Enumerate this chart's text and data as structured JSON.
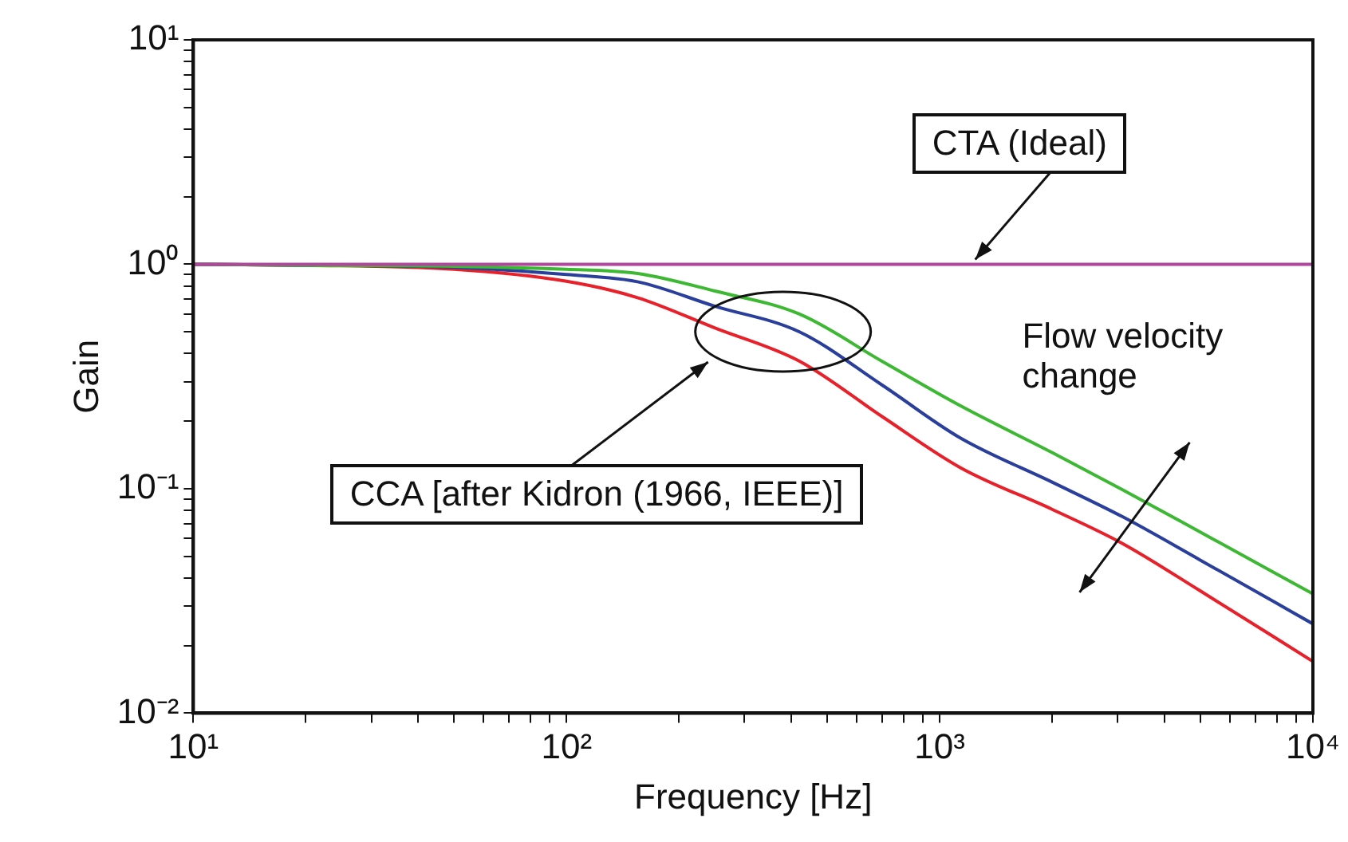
{
  "chart_data": {
    "type": "line",
    "xlabel": "Frequency [Hz]",
    "ylabel": "Gain",
    "log": "xy",
    "grid": false,
    "legend": false,
    "marker": "none",
    "line_style": "solid",
    "xlim": [
      10,
      10000
    ],
    "ylim": [
      0.01,
      10
    ],
    "xticks": [
      {
        "value": 10,
        "label": "10¹"
      },
      {
        "value": 20,
        "label": null
      },
      {
        "value": 30,
        "label": null
      },
      {
        "value": 40,
        "label": null
      },
      {
        "value": 50,
        "label": null
      },
      {
        "value": 60,
        "label": null
      },
      {
        "value": 70,
        "label": null
      },
      {
        "value": 80,
        "label": null
      },
      {
        "value": 90,
        "label": null
      },
      {
        "value": 100,
        "label": "10²"
      },
      {
        "value": 200,
        "label": null
      },
      {
        "value": 300,
        "label": null
      },
      {
        "value": 400,
        "label": null
      },
      {
        "value": 500,
        "label": null
      },
      {
        "value": 600,
        "label": null
      },
      {
        "value": 700,
        "label": null
      },
      {
        "value": 800,
        "label": null
      },
      {
        "value": 900,
        "label": null
      },
      {
        "value": 1000,
        "label": "10³"
      },
      {
        "value": 2000,
        "label": null
      },
      {
        "value": 3000,
        "label": null
      },
      {
        "value": 4000,
        "label": null
      },
      {
        "value": 5000,
        "label": null
      },
      {
        "value": 6000,
        "label": null
      },
      {
        "value": 7000,
        "label": null
      },
      {
        "value": 8000,
        "label": null
      },
      {
        "value": 9000,
        "label": null
      },
      {
        "value": 10000,
        "label": "10⁴"
      }
    ],
    "yticks": [
      {
        "value": 0.01,
        "label": "10⁻²"
      },
      {
        "value": 0.02,
        "label": null
      },
      {
        "value": 0.03,
        "label": null
      },
      {
        "value": 0.04,
        "label": null
      },
      {
        "value": 0.05,
        "label": null
      },
      {
        "value": 0.06,
        "label": null
      },
      {
        "value": 0.07,
        "label": null
      },
      {
        "value": 0.08,
        "label": null
      },
      {
        "value": 0.09,
        "label": null
      },
      {
        "value": 0.1,
        "label": "10⁻¹"
      },
      {
        "value": 0.2,
        "label": null
      },
      {
        "value": 0.3,
        "label": null
      },
      {
        "value": 0.4,
        "label": null
      },
      {
        "value": 0.5,
        "label": null
      },
      {
        "value": 0.6,
        "label": null
      },
      {
        "value": 0.7,
        "label": null
      },
      {
        "value": 0.8,
        "label": null
      },
      {
        "value": 0.9,
        "label": null
      },
      {
        "value": 1,
        "label": "10⁰"
      },
      {
        "value": 2,
        "label": null
      },
      {
        "value": 3,
        "label": null
      },
      {
        "value": 4,
        "label": null
      },
      {
        "value": 5,
        "label": null
      },
      {
        "value": 6,
        "label": null
      },
      {
        "value": 7,
        "label": null
      },
      {
        "value": 8,
        "label": null
      },
      {
        "value": 9,
        "label": null
      },
      {
        "value": 10,
        "label": "10¹"
      }
    ],
    "x": [
      10,
      20,
      50,
      100,
      155,
      250,
      421,
      700,
      1138,
      2000,
      3090,
      5000,
      10000
    ],
    "series": [
      {
        "color": "#b0479c",
        "x": [
          10,
          10000
        ],
        "values": [
          1,
          1
        ]
      },
      {
        "color": "#3cb832",
        "values": [
          1,
          0.99,
          0.98,
          0.95,
          0.91,
          0.76,
          0.6,
          0.37,
          0.234,
          0.145,
          0.099,
          0.064,
          0.034
        ]
      },
      {
        "color": "#2a3f9c",
        "values": [
          1,
          0.99,
          0.97,
          0.9,
          0.836,
          0.65,
          0.5,
          0.29,
          0.168,
          0.107,
          0.075,
          0.048,
          0.025
        ]
      },
      {
        "color": "#e8202a",
        "values": [
          1,
          0.99,
          0.95,
          0.84,
          0.71,
          0.52,
          0.37,
          0.21,
          0.124,
          0.081,
          0.057,
          0.035,
          0.017
        ]
      }
    ],
    "annotations": [
      {
        "text": "CTA (Ideal)",
        "x": 1245,
        "y": 1
      },
      "CCA [after Kidron (1966, IEEE)]",
      "Flow velocity change"
    ]
  }
}
